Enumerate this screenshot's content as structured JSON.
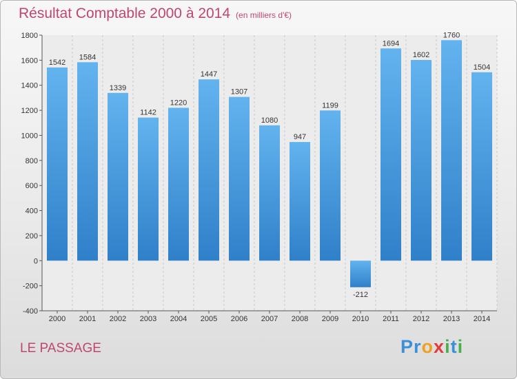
{
  "title": "Résultat Comptable 2000 à 2014",
  "unit_label": "(en milliers d'€)",
  "commune": "LE PASSAGE",
  "logo": {
    "letters": [
      {
        "ch": "P",
        "color": "#3a8fd9"
      },
      {
        "ch": "r",
        "color": "#3a8fd9"
      },
      {
        "ch": "o",
        "color": "#f0a020"
      },
      {
        "ch": "x",
        "color": "#e23a3a"
      },
      {
        "ch": "i",
        "color": "#46b04a"
      },
      {
        "ch": "t",
        "color": "#3a8fd9"
      },
      {
        "ch": "i",
        "color": "#46b04a"
      }
    ]
  },
  "colors": {
    "title": "#c0466e",
    "bar_top": "#62b3ee",
    "bar_bottom": "#2f80c9",
    "plot_bg": "#ececec"
  },
  "chart_data": {
    "type": "bar",
    "title": "Résultat Comptable 2000 à 2014",
    "xlabel": "",
    "ylabel": "",
    "categories": [
      "2000",
      "2001",
      "2002",
      "2003",
      "2004",
      "2005",
      "2006",
      "2007",
      "2008",
      "2009",
      "2010",
      "2011",
      "2012",
      "2013",
      "2014"
    ],
    "values": [
      1542,
      1584,
      1339,
      1142,
      1220,
      1447,
      1307,
      1080,
      947,
      1199,
      -212,
      1694,
      1602,
      1760,
      1504
    ],
    "ylim": [
      -400,
      1800
    ],
    "yticks": [
      -400,
      -200,
      0,
      200,
      400,
      600,
      800,
      1000,
      1200,
      1400,
      1600,
      1800
    ],
    "grid": "vertical"
  }
}
